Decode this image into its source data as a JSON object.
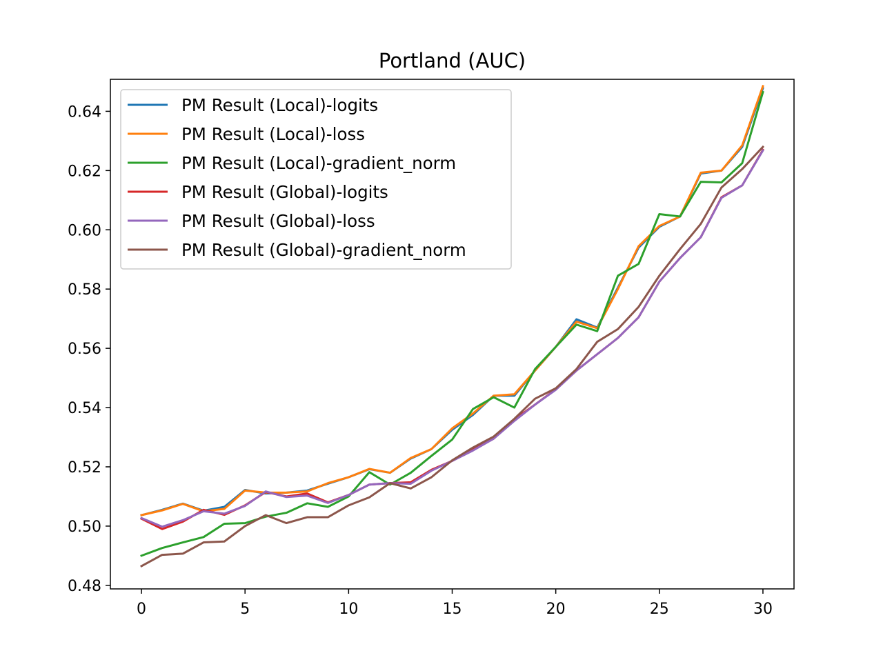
{
  "chart_data": {
    "type": "line",
    "title": "Portland (AUC)",
    "xlabel": "",
    "ylabel": "",
    "xlim": [
      -1.5,
      31.5
    ],
    "ylim": [
      0.4788,
      0.6508
    ],
    "xticks": [
      0,
      5,
      10,
      15,
      20,
      25,
      30
    ],
    "xtick_labels": [
      "0",
      "5",
      "10",
      "15",
      "20",
      "25",
      "30"
    ],
    "yticks": [
      0.48,
      0.5,
      0.52,
      0.54,
      0.56,
      0.58,
      0.6,
      0.62,
      0.64
    ],
    "ytick_labels": [
      "0.48",
      "0.50",
      "0.52",
      "0.54",
      "0.56",
      "0.58",
      "0.60",
      "0.62",
      "0.64"
    ],
    "grid": false,
    "legend_position": "upper-left",
    "x": [
      0,
      1,
      2,
      3,
      4,
      5,
      6,
      7,
      8,
      9,
      10,
      11,
      12,
      13,
      14,
      15,
      16,
      17,
      18,
      19,
      20,
      21,
      22,
      23,
      24,
      25,
      26,
      27,
      28,
      29,
      30
    ],
    "series": [
      {
        "name": "PM Result (Local)-logits",
        "color": "#1f77b4",
        "values": [
          0.5037,
          0.5055,
          0.5076,
          0.5052,
          0.5065,
          0.5122,
          0.511,
          0.5113,
          0.512,
          0.5143,
          0.5165,
          0.5192,
          0.518,
          0.5228,
          0.526,
          0.5325,
          0.5375,
          0.544,
          0.544,
          0.5525,
          0.5605,
          0.5698,
          0.567,
          0.5805,
          0.594,
          0.601,
          0.6045,
          0.619,
          0.62,
          0.628,
          0.6478
        ]
      },
      {
        "name": "PM Result (Local)-loss",
        "color": "#ff7f0e",
        "values": [
          0.5037,
          0.5053,
          0.5075,
          0.505,
          0.5058,
          0.512,
          0.5113,
          0.5113,
          0.5117,
          0.5145,
          0.5165,
          0.5193,
          0.518,
          0.523,
          0.526,
          0.533,
          0.538,
          0.544,
          0.5445,
          0.5525,
          0.5605,
          0.569,
          0.5668,
          0.58,
          0.5945,
          0.6013,
          0.6045,
          0.6193,
          0.62,
          0.6285,
          0.6485
        ]
      },
      {
        "name": "PM Result (Local)-gradient_norm",
        "color": "#2ca02c",
        "values": [
          0.49,
          0.4926,
          0.4945,
          0.4963,
          0.5008,
          0.501,
          0.5032,
          0.5045,
          0.5077,
          0.5065,
          0.51,
          0.5182,
          0.514,
          0.518,
          0.5237,
          0.5292,
          0.5395,
          0.5435,
          0.54,
          0.553,
          0.5605,
          0.568,
          0.5658,
          0.5845,
          0.5885,
          0.6053,
          0.6045,
          0.6162,
          0.616,
          0.6225,
          0.6465
        ]
      },
      {
        "name": "PM Result (Global)-logits",
        "color": "#d62728",
        "values": [
          0.5025,
          0.499,
          0.5015,
          0.5055,
          0.5038,
          0.507,
          0.5115,
          0.51,
          0.511,
          0.508,
          0.5105,
          0.514,
          0.5145,
          0.5148,
          0.519,
          0.522,
          0.5258,
          0.5295,
          0.536,
          0.541,
          0.5462,
          0.5525,
          0.558,
          0.5635,
          0.5705,
          0.5825,
          0.5905,
          0.5975,
          0.611,
          0.615,
          0.627
        ]
      },
      {
        "name": "PM Result (Global)-loss",
        "color": "#9467bd",
        "values": [
          0.5027,
          0.4998,
          0.502,
          0.505,
          0.5042,
          0.5068,
          0.5117,
          0.5098,
          0.5103,
          0.5078,
          0.5105,
          0.514,
          0.5145,
          0.5143,
          0.5187,
          0.522,
          0.5255,
          0.5295,
          0.5355,
          0.541,
          0.546,
          0.5525,
          0.558,
          0.5635,
          0.5705,
          0.5825,
          0.5905,
          0.5975,
          0.6108,
          0.615,
          0.6268
        ]
      },
      {
        "name": "PM Result (Global)-gradient_norm",
        "color": "#8c564b",
        "values": [
          0.4865,
          0.4903,
          0.4907,
          0.4945,
          0.4948,
          0.5,
          0.5037,
          0.501,
          0.503,
          0.503,
          0.507,
          0.5097,
          0.5145,
          0.5127,
          0.5165,
          0.5222,
          0.5265,
          0.5302,
          0.5362,
          0.543,
          0.5465,
          0.553,
          0.5622,
          0.5665,
          0.574,
          0.5845,
          0.5935,
          0.602,
          0.6143,
          0.6205,
          0.628
        ]
      }
    ]
  }
}
